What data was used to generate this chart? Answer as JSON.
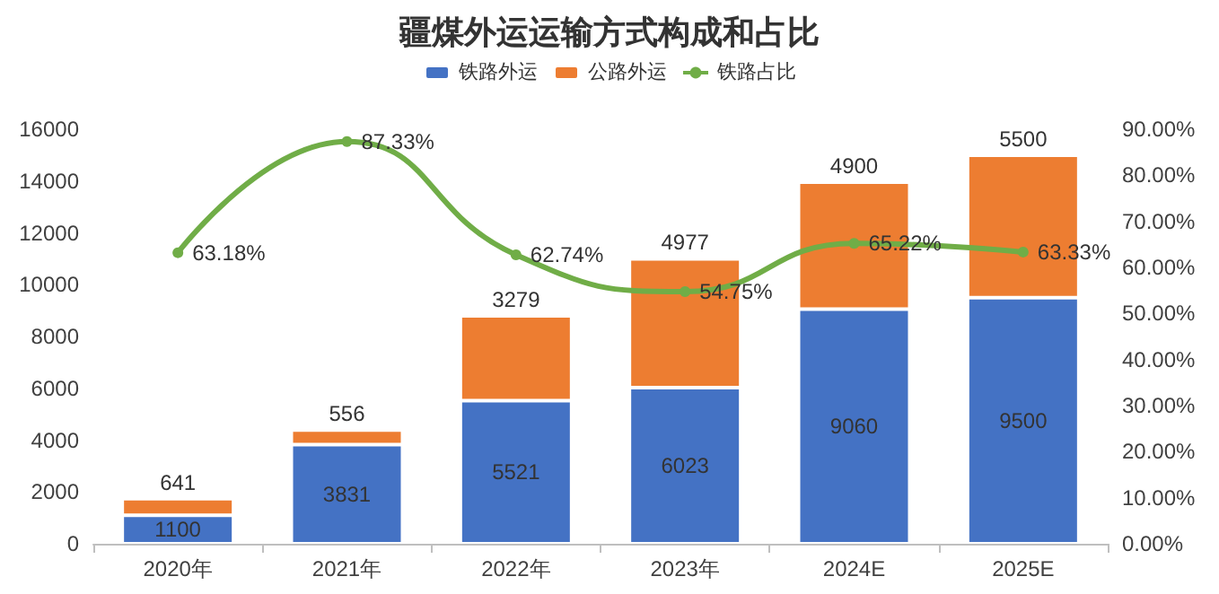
{
  "chart_data": {
    "type": "bar",
    "title": "疆煤外运运输方式构成和占比",
    "categories": [
      "2020年",
      "2021年",
      "2022年",
      "2023年",
      "2024E",
      "2025E"
    ],
    "stacked": true,
    "data_labels": true,
    "legend": "top",
    "grid": false,
    "marker": "circle",
    "series": [
      {
        "name": "铁路外运",
        "color": "#4472c4",
        "values": [
          1100,
          3831,
          5521,
          6023,
          9060,
          9500
        ]
      },
      {
        "name": "公路外运",
        "color": "#ed7d31",
        "values": [
          641,
          556,
          3279,
          4977,
          4900,
          5500
        ]
      },
      {
        "name": "铁路占比",
        "type": "line",
        "axis": "y2",
        "color": "#70ad47",
        "values": [
          63.18,
          87.33,
          62.74,
          54.75,
          65.22,
          63.33
        ],
        "value_labels": [
          "63.18%",
          "87.33%",
          "62.74%",
          "54.75%",
          "65.22%",
          "63.33%"
        ]
      }
    ],
    "ylim": [
      0,
      16000
    ],
    "yticks": [
      0,
      2000,
      4000,
      6000,
      8000,
      10000,
      12000,
      14000,
      16000
    ],
    "y2lim": [
      0,
      90
    ],
    "y2ticks": [
      {
        "value": 0,
        "label": "0.00%"
      },
      {
        "value": 10,
        "label": "10.00%"
      },
      {
        "value": 20,
        "label": "20.00%"
      },
      {
        "value": 30,
        "label": "30.00%"
      },
      {
        "value": 40,
        "label": "40.00%"
      },
      {
        "value": 50,
        "label": "50.00%"
      },
      {
        "value": 60,
        "label": "60.00%"
      },
      {
        "value": 70,
        "label": "70.00%"
      },
      {
        "value": 80,
        "label": "80.00%"
      },
      {
        "value": 90,
        "label": "90.00%"
      }
    ]
  }
}
